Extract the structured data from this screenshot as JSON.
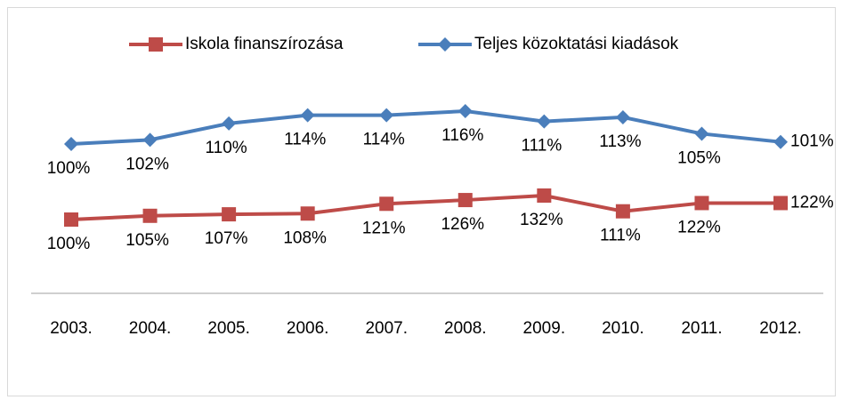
{
  "chart_data": {
    "type": "line",
    "categories": [
      "2003.",
      "2004.",
      "2005.",
      "2006.",
      "2007.",
      "2008.",
      "2009.",
      "2010.",
      "2011.",
      "2012."
    ],
    "legend": "top",
    "series": [
      {
        "name": "Iskola finanszírozása",
        "color": "#be4b48",
        "marker": "square",
        "values": [
          100,
          105,
          107,
          108,
          121,
          126,
          132,
          111,
          122,
          122
        ],
        "value_labels": [
          "100%",
          "105%",
          "107%",
          "108%",
          "121%",
          "126%",
          "132%",
          "111%",
          "122%",
          "122%"
        ]
      },
      {
        "name": "Teljes közoktatási kiadások",
        "color": "#4a7ebb",
        "marker": "diamond",
        "values": [
          100,
          102,
          110,
          114,
          114,
          116,
          111,
          113,
          105,
          101
        ],
        "value_labels": [
          "100%",
          "102%",
          "110%",
          "114%",
          "114%",
          "116%",
          "111%",
          "113%",
          "105%",
          "101%"
        ]
      }
    ]
  }
}
